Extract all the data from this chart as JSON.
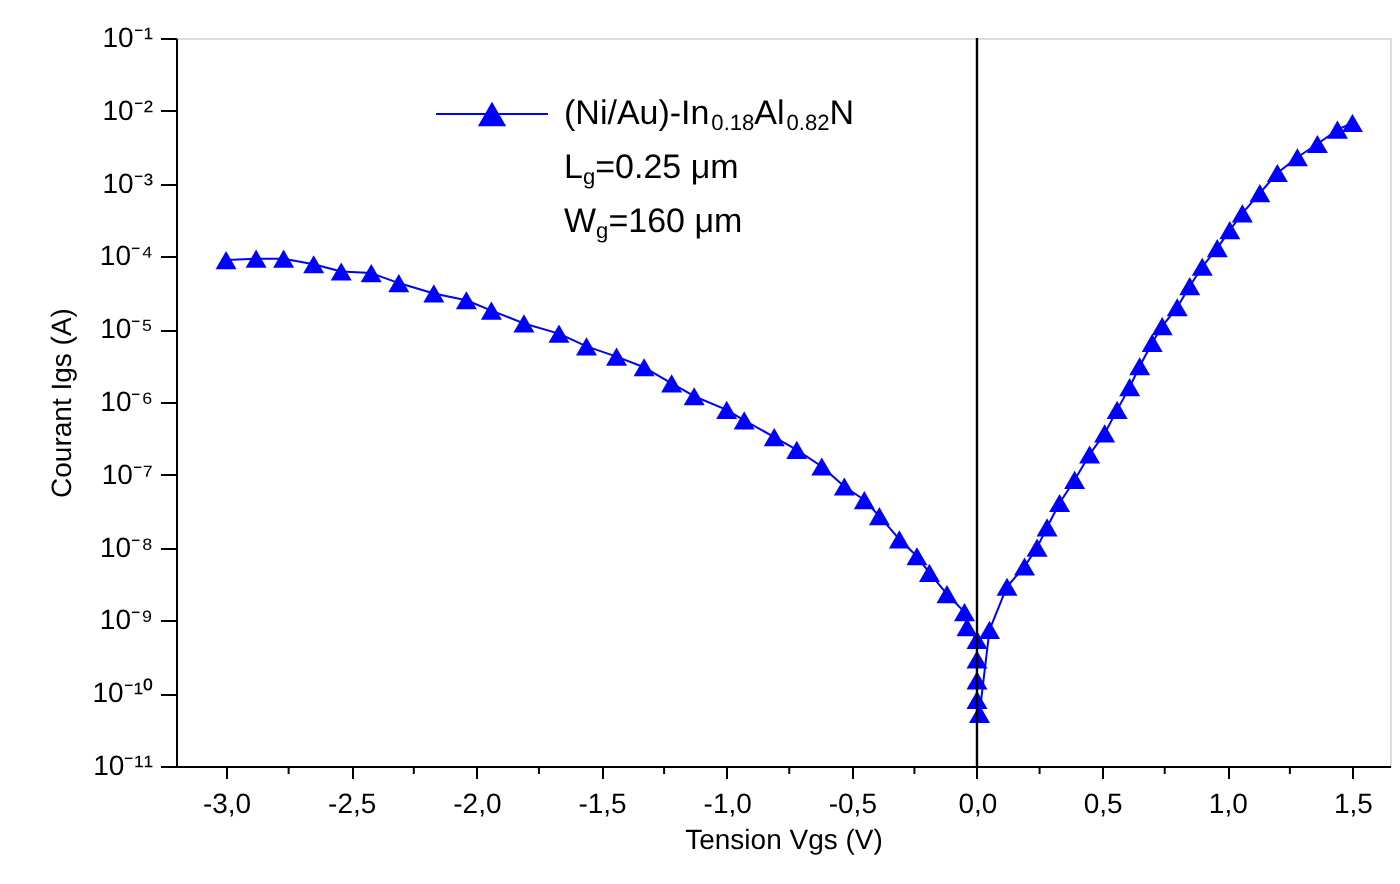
{
  "chart_data": {
    "type": "line",
    "xlabel": "Tension Vgs (V)",
    "ylabel": "Courant Igs (A)",
    "log": "y",
    "marker": "triangle",
    "line_style": "solid",
    "legend": "top left",
    "grid": false,
    "xlim": [
      -3.2,
      1.65
    ],
    "ylim": [
      1e-11,
      0.1
    ],
    "xticks": [
      {
        "value": -3,
        "label": "-3,0"
      },
      {
        "value": -2.75,
        "label": null
      },
      {
        "value": -2.5,
        "label": "-2,5"
      },
      {
        "value": -2.25,
        "label": null
      },
      {
        "value": -2,
        "label": "-2,0"
      },
      {
        "value": -1.75,
        "label": null
      },
      {
        "value": -1.5,
        "label": "-1,5"
      },
      {
        "value": -1.25,
        "label": null
      },
      {
        "value": -1,
        "label": "-1,0"
      },
      {
        "value": -0.75,
        "label": null
      },
      {
        "value": -0.5,
        "label": "-0,5"
      },
      {
        "value": -0.25,
        "label": null
      },
      {
        "value": 0,
        "label": "0,0"
      },
      {
        "value": 0.25,
        "label": null
      },
      {
        "value": 0.5,
        "label": "0,5"
      },
      {
        "value": 0.75,
        "label": null
      },
      {
        "value": 1,
        "label": "1,0"
      },
      {
        "value": 1.25,
        "label": null
      },
      {
        "value": 1.5,
        "label": "1,5"
      }
    ],
    "yticks": [
      {
        "value": 1e-11,
        "label": "10⁻¹¹"
      },
      {
        "value": 1e-10,
        "label": "10⁻¹⁰"
      },
      {
        "value": 1e-09,
        "label": "10⁻⁹"
      },
      {
        "value": 1e-08,
        "label": "10⁻⁸"
      },
      {
        "value": 1e-07,
        "label": "10⁻⁷"
      },
      {
        "value": 1e-06,
        "label": "10⁻⁶"
      },
      {
        "value": 1e-05,
        "label": "10⁻⁵"
      },
      {
        "value": 0.0001,
        "label": "10⁻⁴"
      },
      {
        "value": 0.001,
        "label": "10⁻³"
      },
      {
        "value": 0.01,
        "label": "10⁻²"
      },
      {
        "value": 0.1,
        "label": "10⁻¹"
      }
    ],
    "ref_lines": [
      {
        "axis": "x",
        "value": 0,
        "color": "#000000",
        "line_style": "solid"
      }
    ],
    "annotations": [
      "L$_{g}$=0.25 μm",
      "W$_{g}$=160 μm"
    ],
    "series": [
      {
        "name": "(Ni/Au)-In$_{0.18}$Al$_{0.82}$N",
        "color": "#0000ff",
        "x": [
          -3.0,
          -2.88,
          -2.77,
          -2.65,
          -2.54,
          -2.42,
          -2.31,
          -2.17,
          -2.04,
          -1.94,
          -1.81,
          -1.67,
          -1.56,
          -1.44,
          -1.33,
          -1.22,
          -1.13,
          -1.0,
          -0.93,
          -0.81,
          -0.72,
          -0.62,
          -0.53,
          -0.45,
          -0.39,
          -0.31,
          -0.24,
          -0.19,
          -0.12,
          -0.05,
          -0.04,
          0.0,
          0.0,
          0.0,
          0.0,
          0.01,
          0.05,
          0.12,
          0.19,
          0.24,
          0.28,
          0.33,
          0.39,
          0.45,
          0.51,
          0.56,
          0.61,
          0.65,
          0.7,
          0.74,
          0.8,
          0.85,
          0.9,
          0.96,
          1.01,
          1.06,
          1.13,
          1.2,
          1.28,
          1.36,
          1.44,
          1.5
        ],
        "values": [
          8.9e-05,
          9.3e-05,
          9.3e-05,
          7.8e-05,
          6.2e-05,
          5.9e-05,
          4.3e-05,
          3.1e-05,
          2.5e-05,
          1.8e-05,
          1.2e-05,
          8.7e-06,
          5.8e-06,
          4.2e-06,
          3e-06,
          1.8e-06,
          1.2e-06,
          7.8e-07,
          5.6e-07,
          3.3e-07,
          2.2e-07,
          1.3e-07,
          6.9e-08,
          4.5e-08,
          2.7e-08,
          1.3e-08,
          7.6e-09,
          4.5e-09,
          2.3e-09,
          1.3e-09,
          8.1e-10,
          5.4e-10,
          2.9e-10,
          1.5e-10,
          8.1e-11,
          5.2e-11,
          7.4e-10,
          2.9e-09,
          5.5e-09,
          1e-08,
          1.9e-08,
          4.1e-08,
          8.5e-08,
          1.9e-07,
          3.7e-07,
          7.8e-07,
          1.6e-06,
          3.1e-06,
          6.5e-06,
          1.1e-05,
          2e-05,
          3.9e-05,
          7.2e-05,
          0.00013,
          0.00023,
          0.00039,
          0.00074,
          0.0014,
          0.0023,
          0.0035,
          0.0055,
          0.0068
        ]
      }
    ]
  }
}
